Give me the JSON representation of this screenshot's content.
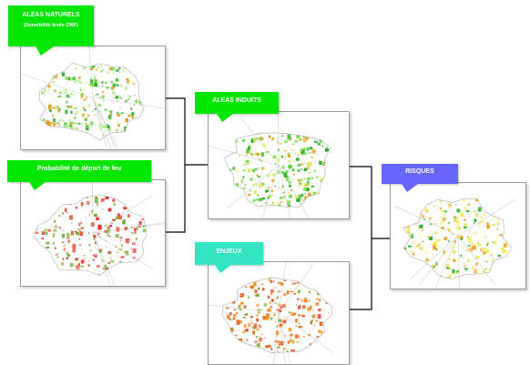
{
  "panels": {
    "aleas_naturels": {
      "title": "ALEAS NATURELS",
      "subtitle": "(Sensibilité brute ONF)",
      "label_color": "#00e600",
      "map_palette": [
        "#22aa22",
        "#55cc33",
        "#88dd55",
        "#bbee99",
        "#e3a020"
      ]
    },
    "probabilite_depart_feu": {
      "title": "Probabilité de départ de feu",
      "label_color": "#00e600",
      "map_palette": [
        "#ee2b2b",
        "#f25a4a",
        "#c85a3a",
        "#6fae3a",
        "#9bc25a"
      ]
    },
    "aleas_induits": {
      "title": "ALEAS INDUITS",
      "label_color": "#00e600",
      "map_palette": [
        "#22aa22",
        "#55cc33",
        "#88dd55",
        "#d8e860",
        "#e3a020"
      ]
    },
    "enjeux": {
      "title": "ENJEUX",
      "label_color": "#33e5c2",
      "map_palette": [
        "#f07a1a",
        "#f29a30",
        "#ee4a2a",
        "#e06a20",
        "#7fae3a"
      ]
    },
    "risques": {
      "title": "RISQUES",
      "label_color": "#6666ff",
      "map_palette": [
        "#f2ea30",
        "#e8e060",
        "#f5f290",
        "#22aa22",
        "#f0a020"
      ]
    }
  },
  "connector_color": "#000000",
  "frame_border_color": "#9a9a9a"
}
